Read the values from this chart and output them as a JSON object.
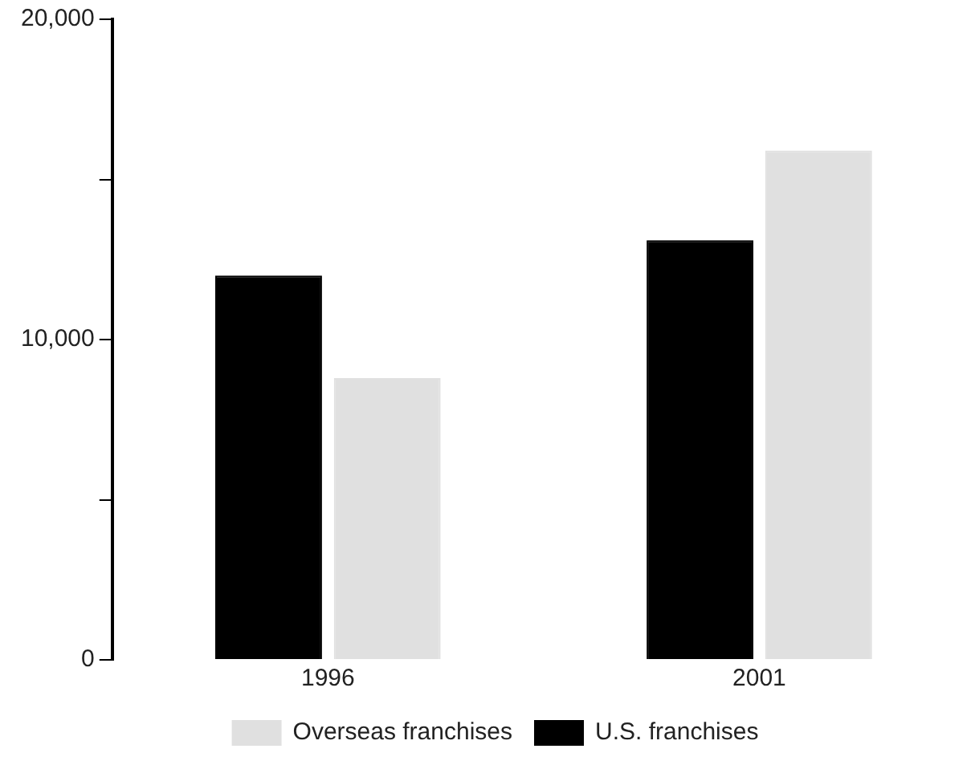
{
  "chart_data": {
    "type": "bar",
    "categories": [
      "1996",
      "2001"
    ],
    "series": [
      {
        "name": "U.S. franchises",
        "color": "#000000",
        "values": [
          12000,
          13100
        ]
      },
      {
        "name": "Overseas franchises",
        "color": "#e0e0e0",
        "values": [
          8800,
          15900
        ]
      }
    ],
    "ylim": [
      0,
      20000
    ],
    "yticks": [
      0,
      {
        "value": 5000,
        "label": null
      },
      {
        "value": 10000,
        "label": "10,000"
      },
      {
        "value": 15000,
        "label": null
      },
      {
        "value": 20000,
        "label": "20,000"
      }
    ],
    "grid": false,
    "legend": "bottom"
  }
}
